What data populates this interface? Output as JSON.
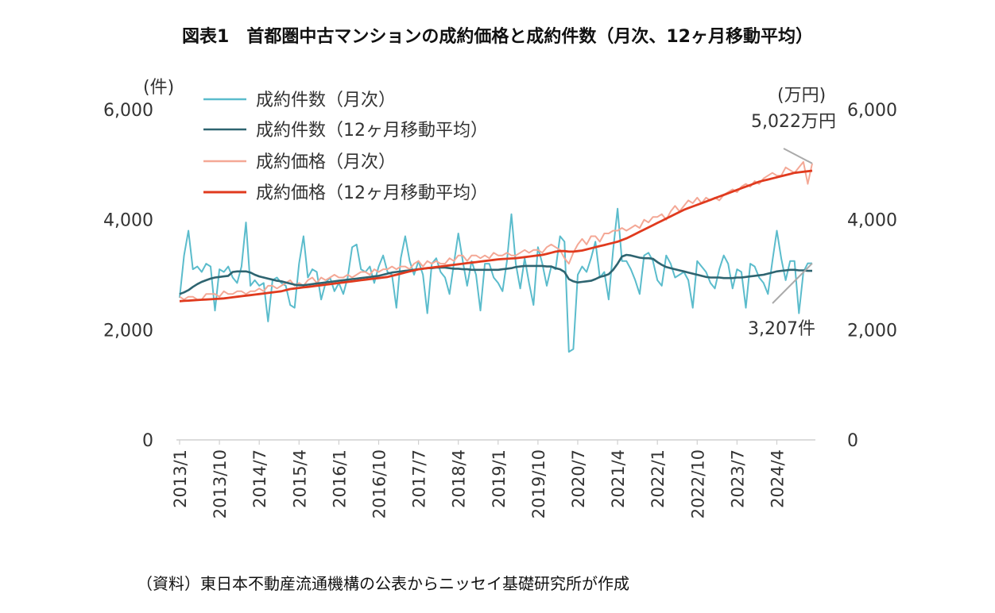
{
  "chart_data": {
    "type": "line",
    "title": "図表1　首都圏中古マンションの成約価格と成約件数（月次、12ヶ月移動平均）",
    "source": "（資料）東日本不動産流通機構の公表からニッセイ基礎研究所が作成",
    "left_axis": {
      "unit": "(件)",
      "ylim": [
        0,
        6000
      ],
      "ticks": [
        "0",
        "2,000",
        "4,000",
        "6,000"
      ]
    },
    "right_axis": {
      "unit": "(万円)",
      "ylim": [
        0,
        6000
      ],
      "ticks": [
        "0",
        "2,000",
        "4,000",
        "6,000"
      ]
    },
    "x_ticks": [
      "2013/1",
      "2013/10",
      "2014/7",
      "2015/4",
      "2016/1",
      "2016/10",
      "2017/7",
      "2018/4",
      "2019/1",
      "2019/10",
      "2020/7",
      "2021/4",
      "2022/1",
      "2022/10",
      "2023/7",
      "2024/4"
    ],
    "x_start": "2013-01",
    "x_end": "2024-12",
    "grid": false,
    "legend_position": "top-left",
    "annotations": [
      {
        "text": "5,022万円",
        "series": "成約価格（月次）"
      },
      {
        "text": "3,207件",
        "series": "成約件数（月次）"
      }
    ],
    "series": [
      {
        "name": "成約件数（月次）",
        "axis": "left",
        "color": "#5bbccc",
        "values": [
          2580,
          3350,
          3800,
          3100,
          3150,
          3050,
          3200,
          3150,
          2350,
          3100,
          3050,
          3150,
          2950,
          2850,
          3150,
          3950,
          2800,
          2900,
          2800,
          2850,
          2150,
          2900,
          2950,
          2850,
          2800,
          2450,
          2400,
          3200,
          3700,
          2950,
          3100,
          3050,
          2550,
          2850,
          2950,
          2700,
          2850,
          2650,
          2950,
          3500,
          3550,
          3100,
          3050,
          3150,
          2850,
          3150,
          3350,
          3050,
          3000,
          2400,
          3300,
          3700,
          3250,
          3000,
          3250,
          3000,
          2300,
          3200,
          3300,
          3050,
          2950,
          2650,
          3200,
          3750,
          3250,
          2800,
          3250,
          3000,
          2350,
          3200,
          3200,
          2950,
          2850,
          2700,
          3250,
          4100,
          3200,
          2750,
          3300,
          2850,
          2450,
          3500,
          3200,
          2800,
          3150,
          3100,
          3700,
          3600,
          1600,
          1650,
          3000,
          3150,
          3050,
          3300,
          3600,
          2950,
          3050,
          2550,
          3450,
          4200,
          3250,
          3250,
          3100,
          2900,
          2650,
          3350,
          3400,
          3250,
          2900,
          2800,
          3350,
          3200,
          2950,
          3000,
          3050,
          2900,
          2400,
          3250,
          3150,
          3050,
          2850,
          2750,
          3100,
          3350,
          3200,
          2750,
          3100,
          3050,
          2400,
          3200,
          3150,
          2950,
          2850,
          2650,
          3250,
          3800,
          3300,
          2900,
          3250,
          3250,
          2300,
          3050,
          3207,
          3207
        ]
      },
      {
        "name": "成約件数（12ヶ月移動平均）",
        "axis": "left",
        "color": "#2e6470",
        "values": [
          2650,
          2680,
          2720,
          2780,
          2830,
          2870,
          2900,
          2930,
          2950,
          2960,
          2970,
          2980,
          3050,
          3060,
          3060,
          3060,
          3040,
          3000,
          2970,
          2950,
          2930,
          2910,
          2890,
          2880,
          2860,
          2840,
          2820,
          2810,
          2810,
          2820,
          2830,
          2840,
          2850,
          2860,
          2870,
          2880,
          2890,
          2900,
          2910,
          2920,
          2930,
          2940,
          2950,
          2960,
          2970,
          2980,
          3000,
          3020,
          3040,
          3050,
          3060,
          3070,
          3080,
          3090,
          3100,
          3110,
          3120,
          3120,
          3130,
          3130,
          3130,
          3120,
          3110,
          3110,
          3100,
          3100,
          3090,
          3090,
          3090,
          3090,
          3090,
          3090,
          3090,
          3100,
          3110,
          3120,
          3140,
          3150,
          3160,
          3160,
          3160,
          3160,
          3160,
          3150,
          3150,
          3120,
          3100,
          3050,
          2920,
          2880,
          2860,
          2870,
          2880,
          2890,
          2920,
          2960,
          2980,
          3010,
          3090,
          3200,
          3330,
          3360,
          3350,
          3330,
          3310,
          3300,
          3300,
          3290,
          3230,
          3180,
          3140,
          3120,
          3100,
          3080,
          3060,
          3040,
          3020,
          3000,
          2980,
          2960,
          2950,
          2950,
          2950,
          2940,
          2940,
          2940,
          2950,
          2950,
          2960,
          2970,
          2980,
          2990,
          3000,
          3020,
          3040,
          3060,
          3070,
          3080,
          3090,
          3090,
          3080,
          3080,
          3070,
          3070
        ]
      },
      {
        "name": "成約価格（月次）",
        "axis": "right",
        "color": "#f4a896",
        "values": [
          2600,
          2550,
          2600,
          2600,
          2550,
          2550,
          2650,
          2650,
          2650,
          2600,
          2700,
          2650,
          2650,
          2700,
          2700,
          2650,
          2700,
          2700,
          2750,
          2700,
          2800,
          2800,
          2750,
          2800,
          2850,
          2900,
          2800,
          2850,
          2800,
          2900,
          2950,
          2850,
          2950,
          2900,
          2950,
          3000,
          2950,
          2950,
          3000,
          2950,
          3000,
          3050,
          3050,
          3000,
          3100,
          3050,
          3100,
          3100,
          3150,
          3100,
          3150,
          3150,
          3100,
          3200,
          3250,
          3150,
          3250,
          3200,
          3250,
          3200,
          3200,
          3300,
          3250,
          3350,
          3350,
          3250,
          3350,
          3350,
          3300,
          3350,
          3300,
          3400,
          3350,
          3350,
          3400,
          3350,
          3350,
          3400,
          3450,
          3400,
          3450,
          3450,
          3400,
          3500,
          3550,
          3500,
          3450,
          3300,
          3200,
          3400,
          3550,
          3650,
          3550,
          3700,
          3700,
          3600,
          3750,
          3750,
          3800,
          3800,
          3850,
          3800,
          3850,
          3900,
          3850,
          4000,
          3950,
          4050,
          4050,
          4100,
          4000,
          4150,
          4250,
          4150,
          4250,
          4350,
          4300,
          4400,
          4300,
          4400,
          4350,
          4400,
          4350,
          4450,
          4500,
          4550,
          4500,
          4600,
          4650,
          4600,
          4700,
          4650,
          4750,
          4800,
          4850,
          4800,
          4800,
          4950,
          4900,
          4850,
          4950,
          5050,
          4650,
          5022
        ]
      },
      {
        "name": "成約価格（12ヶ月移動平均）",
        "axis": "right",
        "color": "#e03a1e",
        "values": [
          2520,
          2525,
          2530,
          2535,
          2540,
          2545,
          2550,
          2555,
          2560,
          2565,
          2570,
          2580,
          2590,
          2600,
          2610,
          2620,
          2630,
          2640,
          2650,
          2660,
          2670,
          2680,
          2690,
          2700,
          2720,
          2740,
          2750,
          2760,
          2770,
          2780,
          2790,
          2800,
          2810,
          2820,
          2830,
          2840,
          2850,
          2860,
          2870,
          2880,
          2890,
          2900,
          2910,
          2920,
          2930,
          2940,
          2950,
          2960,
          2980,
          3000,
          3020,
          3040,
          3060,
          3080,
          3100,
          3110,
          3120,
          3130,
          3140,
          3150,
          3160,
          3170,
          3180,
          3190,
          3200,
          3210,
          3220,
          3230,
          3240,
          3250,
          3260,
          3270,
          3280,
          3285,
          3290,
          3295,
          3300,
          3310,
          3320,
          3330,
          3340,
          3350,
          3360,
          3380,
          3400,
          3420,
          3430,
          3430,
          3420,
          3420,
          3430,
          3440,
          3460,
          3480,
          3500,
          3520,
          3540,
          3560,
          3580,
          3600,
          3630,
          3660,
          3700,
          3740,
          3780,
          3820,
          3860,
          3900,
          3940,
          3980,
          4020,
          4060,
          4100,
          4140,
          4180,
          4210,
          4240,
          4270,
          4300,
          4330,
          4360,
          4390,
          4420,
          4450,
          4480,
          4510,
          4540,
          4570,
          4600,
          4630,
          4660,
          4690,
          4710,
          4730,
          4750,
          4770,
          4790,
          4810,
          4830,
          4850,
          4860,
          4870,
          4880,
          4890
        ]
      }
    ]
  }
}
